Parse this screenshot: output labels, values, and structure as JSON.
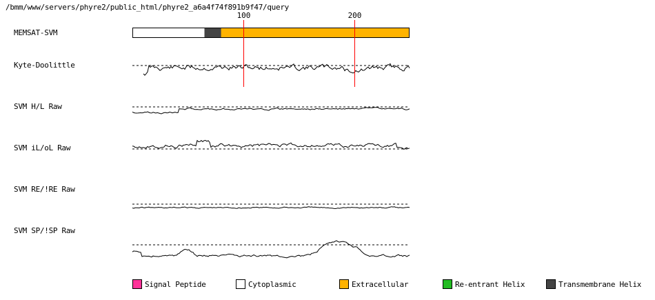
{
  "path": "/bmm/www/servers/phyre2/public_html/phyre2_a6a4f74f891b9f47/query",
  "sequence_length": 250,
  "ticks": [
    {
      "pos": 100,
      "label": "100"
    },
    {
      "pos": 200,
      "label": "200"
    }
  ],
  "tracks": {
    "memsat": {
      "label": "MEMSAT-SVM",
      "segments": [
        {
          "start": 1,
          "end": 66,
          "type": "cytoplasmic"
        },
        {
          "start": 66,
          "end": 81,
          "type": "transmembrane"
        },
        {
          "start": 81,
          "end": 250,
          "type": "extracellular"
        }
      ]
    },
    "kyte": {
      "label": "Kyte-Doolittle"
    },
    "hl": {
      "label": "SVM H/L Raw"
    },
    "ilol": {
      "label": "SVM iL/oL Raw"
    },
    "reire": {
      "label": "SVM RE/!RE Raw"
    },
    "spisp": {
      "label": "SVM SP/!SP Raw"
    }
  },
  "legend": [
    {
      "key": "signal",
      "label": "Signal Peptide",
      "color": "#ff3399"
    },
    {
      "key": "cytoplasmic",
      "label": "Cytoplasmic",
      "color": "#ffffff"
    },
    {
      "key": "extracellular",
      "label": "Extracellular",
      "color": "#ffb300"
    },
    {
      "key": "reentrant",
      "label": "Re-entrant Helix",
      "color": "#22bb22"
    },
    {
      "key": "transmembrane",
      "label": "Transmembrane Helix",
      "color": "#444444"
    }
  ],
  "colors": {
    "marker": "#ff0000",
    "trace": "#000000",
    "baseline": "#000000"
  }
}
